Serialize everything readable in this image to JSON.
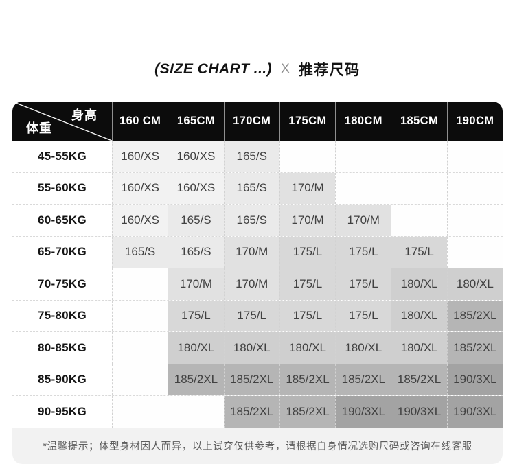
{
  "title": {
    "en": "(SIZE CHART ...)",
    "separator": "X",
    "zh": "推荐尺码"
  },
  "table": {
    "corner": {
      "top_right_label": "身高",
      "bottom_left_label": "体重"
    },
    "columns": [
      "160 CM",
      "165CM",
      "170CM",
      "175CM",
      "180CM",
      "185CM",
      "190CM"
    ],
    "rows": [
      {
        "label": "45-55KG",
        "cells": [
          "160/XS",
          "160/XS",
          "165/S",
          "",
          "",
          "",
          ""
        ]
      },
      {
        "label": "55-60KG",
        "cells": [
          "160/XS",
          "160/XS",
          "165/S",
          "170/M",
          "",
          "",
          ""
        ]
      },
      {
        "label": "60-65KG",
        "cells": [
          "160/XS",
          "165/S",
          "165/S",
          "170/M",
          "170/M",
          "",
          ""
        ]
      },
      {
        "label": "65-70KG",
        "cells": [
          "165/S",
          "165/S",
          "170/M",
          "175/L",
          "175/L",
          "175/L",
          ""
        ]
      },
      {
        "label": "70-75KG",
        "cells": [
          "",
          "170/M",
          "170/M",
          "175/L",
          "175/L",
          "180/XL",
          "180/XL"
        ]
      },
      {
        "label": "75-80KG",
        "cells": [
          "",
          "175/L",
          "175/L",
          "175/L",
          "175/L",
          "180/XL",
          "185/2XL"
        ]
      },
      {
        "label": "80-85KG",
        "cells": [
          "",
          "180/XL",
          "180/XL",
          "180/XL",
          "180/XL",
          "180/XL",
          "185/2XL"
        ]
      },
      {
        "label": "85-90KG",
        "cells": [
          "",
          "185/2XL",
          "185/2XL",
          "185/2XL",
          "185/2XL",
          "185/2XL",
          "190/3XL"
        ]
      },
      {
        "label": "90-95KG",
        "cells": [
          "",
          "",
          "185/2XL",
          "185/2XL",
          "190/3XL",
          "190/3XL",
          "190/3XL"
        ]
      }
    ],
    "size_shades": {
      "": "#fefefe",
      "160/XS": "#f2f2f2",
      "165/S": "#eaeaea",
      "170/M": "#e1e1e1",
      "175/L": "#d8d8d8",
      "180/XL": "#cfcfcf",
      "185/2XL": "#b5b5b5",
      "190/3XL": "#a3a3a3"
    }
  },
  "footer": {
    "note": "*温馨提示；体型身材因人而异，以上试穿仅供参考，请根据自身情况选购尺码或咨询在线客服"
  },
  "colors": {
    "header_bg": "#0c0c0c",
    "header_text": "#ffffff",
    "header_separator": "#8f8f8f",
    "grid_dash": "#d9d9d9",
    "footer_bg": "#f2f2f2",
    "footer_text": "#5d5d5d",
    "title_text": "#121212",
    "title_x": "#8f8f8f"
  }
}
